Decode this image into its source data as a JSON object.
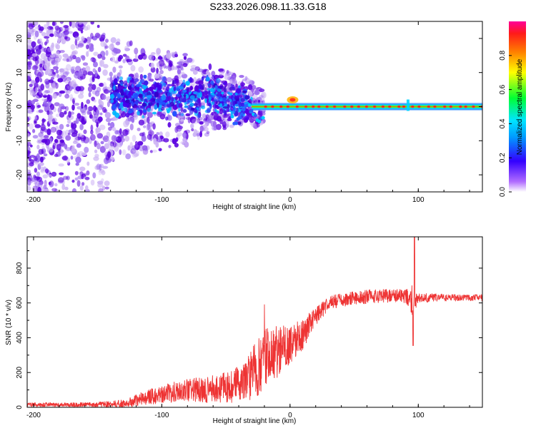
{
  "title": "S233.2026.098.11.33.G18",
  "colors": {
    "snr_line": "#ee3333",
    "scatter_dark": "#5a00e0",
    "scatter_light": "#cdb4f4"
  },
  "chart_data": [
    {
      "type": "heatmap",
      "xlabel": "Height of straight line (km)",
      "ylabel": "Frequency (Hz)",
      "xlim": [
        -205,
        150
      ],
      "ylim": [
        -25,
        25
      ],
      "x_ticks": [
        -200,
        -100,
        0,
        100
      ],
      "y_ticks": [
        -20,
        -10,
        0,
        10,
        20
      ],
      "colorbar": {
        "label": "Normalized spectral amplitude",
        "range": [
          0,
          1
        ],
        "ticks": [
          "0.0",
          "0.2",
          "0.4",
          "0.6",
          "0.8"
        ],
        "colormap": "rainbow"
      },
      "features": [
        {
          "name": "noise scatter",
          "x_range": [
            -205,
            -20
          ],
          "freq_range": [
            -25,
            25
          ]
        },
        {
          "name": "dense cluster",
          "x_range": [
            -140,
            -30
          ],
          "freq_range": [
            -8,
            10
          ]
        },
        {
          "name": "carrier tone",
          "x_range": [
            -30,
            150
          ],
          "frequency": 0
        },
        {
          "name": "bump",
          "x": 2,
          "frequency": 2
        },
        {
          "name": "spike",
          "x": 92,
          "frequency": 0
        }
      ]
    },
    {
      "type": "line",
      "series": [
        {
          "name": "SNR",
          "color": "#ee3333"
        }
      ],
      "xlabel": "Height of straight line (km)",
      "ylabel": "SNR (10 * v/v)",
      "xlim": [
        -205,
        150
      ],
      "ylim": [
        0,
        980
      ],
      "x_ticks": [
        -200,
        -100,
        0,
        100
      ],
      "y_ticks": [
        0,
        200,
        400,
        600,
        800
      ],
      "envelope": {
        "x": [
          -205,
          -150,
          -130,
          -110,
          -90,
          -70,
          -50,
          -35,
          -25,
          -20,
          -10,
          0,
          10,
          20,
          30,
          50,
          70,
          90,
          95,
          97,
          100,
          120,
          150
        ],
        "mean": [
          15,
          15,
          20,
          60,
          90,
          100,
          110,
          150,
          230,
          280,
          320,
          360,
          420,
          520,
          600,
          630,
          640,
          640,
          620,
          600,
          630,
          630,
          630
        ],
        "spread": [
          12,
          15,
          25,
          45,
          60,
          75,
          90,
          120,
          170,
          170,
          150,
          110,
          90,
          55,
          40,
          40,
          40,
          40,
          90,
          60,
          30,
          20,
          20
        ]
      },
      "annotations": [
        {
          "x": -20,
          "peak": 610
        },
        {
          "x": 97,
          "peak": 980
        },
        {
          "x": 96,
          "trough": 355
        }
      ]
    }
  ]
}
